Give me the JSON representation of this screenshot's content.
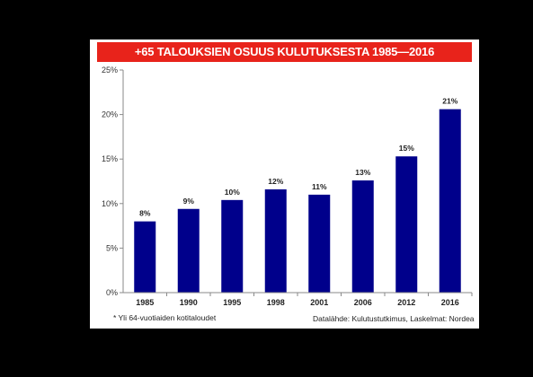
{
  "chart_data": {
    "type": "bar",
    "title": "+65 TALOUKSIEN OSUUS KULUTUKSESTA 1985—2016",
    "categories": [
      "1985",
      "1990",
      "1995",
      "1998",
      "2001",
      "2006",
      "2012",
      "2016"
    ],
    "values": [
      8.0,
      9.4,
      10.4,
      11.6,
      11.0,
      12.6,
      15.3,
      20.6
    ],
    "data_labels": [
      "8%",
      "9%",
      "10%",
      "12%",
      "11%",
      "13%",
      "15%",
      "21%"
    ],
    "y_ticks": [
      "0%",
      "5%",
      "10%",
      "15%",
      "20%",
      "25%"
    ],
    "ylim": [
      0,
      25
    ],
    "y_unit": "%",
    "xlabel": "",
    "ylabel": "",
    "grid": false,
    "legend": "none",
    "bar_color": "#00008b",
    "title_bg_color": "#e8231b",
    "footnote": "* Yli 64-vuotiaiden kotitaloudet",
    "source": "Datalähde: Kulutustutkimus, Laskelmat: Nordea"
  }
}
